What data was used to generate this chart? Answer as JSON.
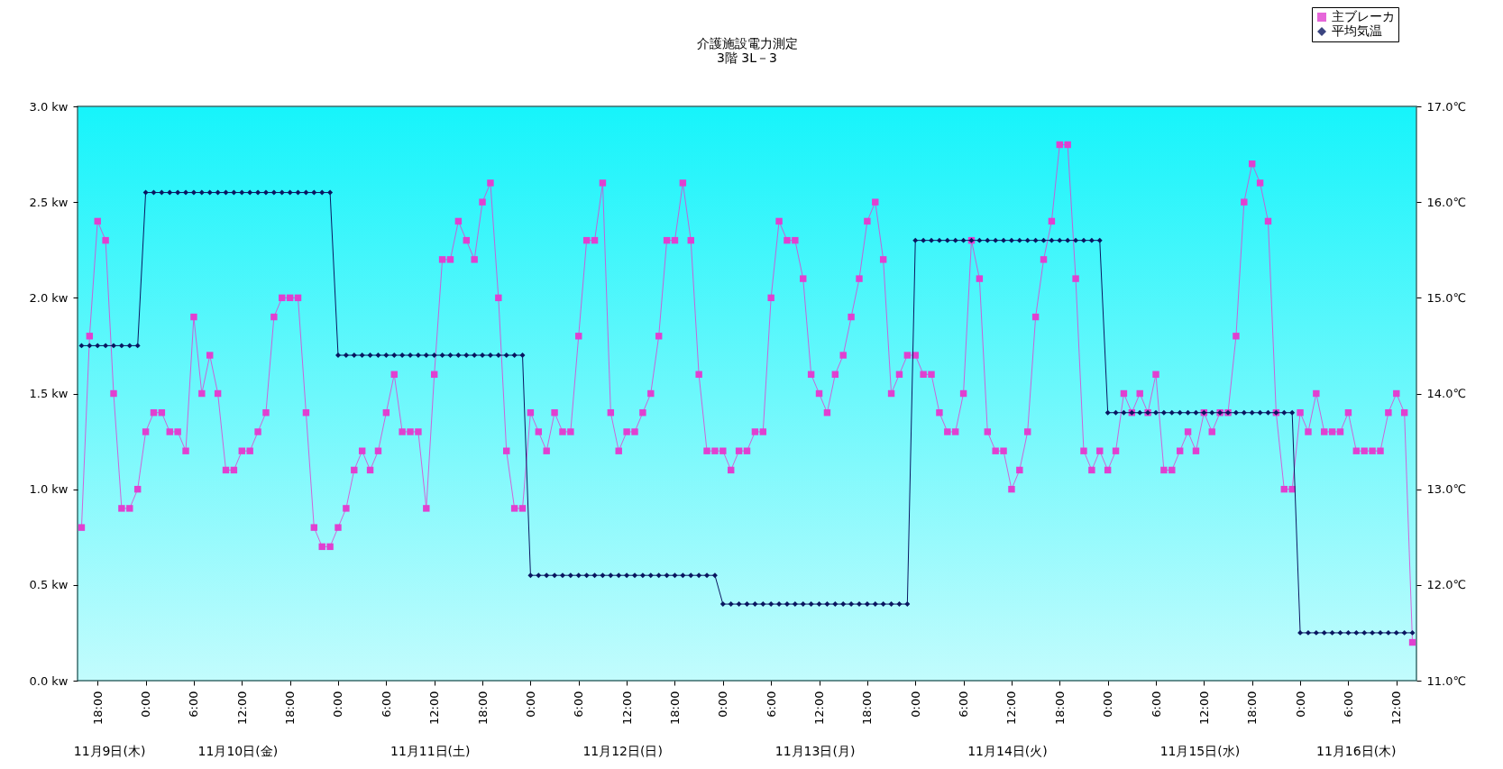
{
  "chart_data": {
    "type": "line",
    "title": "介護施設電力測定",
    "subtitle": "3階 3L－3",
    "legend": "top right",
    "x": [
      "--11-09T16:00",
      "--11-09T17:00",
      "--11-09T18:00",
      "--11-09T19:00",
      "--11-09T20:00",
      "--11-09T21:00",
      "--11-09T22:00",
      "--11-09T23:00",
      "--11-10T00:00",
      "--11-10T01:00",
      "--11-10T02:00",
      "--11-10T03:00",
      "--11-10T04:00",
      "--11-10T05:00",
      "--11-10T06:00",
      "--11-10T07:00",
      "--11-10T08:00",
      "--11-10T09:00",
      "--11-10T10:00",
      "--11-10T11:00",
      "--11-10T12:00",
      "--11-10T13:00",
      "--11-10T14:00",
      "--11-10T15:00",
      "--11-10T16:00",
      "--11-10T17:00",
      "--11-10T18:00",
      "--11-10T19:00",
      "--11-10T20:00",
      "--11-10T21:00",
      "--11-10T22:00",
      "--11-10T23:00",
      "--11-11T00:00",
      "--11-11T01:00",
      "--11-11T02:00",
      "--11-11T03:00",
      "--11-11T04:00",
      "--11-11T05:00",
      "--11-11T06:00",
      "--11-11T07:00",
      "--11-11T08:00",
      "--11-11T09:00",
      "--11-11T10:00",
      "--11-11T11:00",
      "--11-11T12:00",
      "--11-11T13:00",
      "--11-11T14:00",
      "--11-11T15:00",
      "--11-11T16:00",
      "--11-11T17:00",
      "--11-11T18:00",
      "--11-11T19:00",
      "--11-11T20:00",
      "--11-11T21:00",
      "--11-11T22:00",
      "--11-11T23:00",
      "--11-12T00:00",
      "--11-12T01:00",
      "--11-12T02:00",
      "--11-12T03:00",
      "--11-12T04:00",
      "--11-12T05:00",
      "--11-12T06:00",
      "--11-12T07:00",
      "--11-12T08:00",
      "--11-12T09:00",
      "--11-12T10:00",
      "--11-12T11:00",
      "--11-12T12:00",
      "--11-12T13:00",
      "--11-12T14:00",
      "--11-12T15:00",
      "--11-12T16:00",
      "--11-12T17:00",
      "--11-12T18:00",
      "--11-12T19:00",
      "--11-12T20:00",
      "--11-12T21:00",
      "--11-12T22:00",
      "--11-12T23:00",
      "--11-13T00:00",
      "--11-13T01:00",
      "--11-13T02:00",
      "--11-13T03:00",
      "--11-13T04:00",
      "--11-13T05:00",
      "--11-13T06:00",
      "--11-13T07:00",
      "--11-13T08:00",
      "--11-13T09:00",
      "--11-13T10:00",
      "--11-13T11:00",
      "--11-13T12:00",
      "--11-13T13:00",
      "--11-13T14:00",
      "--11-13T15:00",
      "--11-13T16:00",
      "--11-13T17:00",
      "--11-13T18:00",
      "--11-13T19:00",
      "--11-13T20:00",
      "--11-13T21:00",
      "--11-13T22:00",
      "--11-13T23:00",
      "--11-14T00:00",
      "--11-14T01:00",
      "--11-14T02:00",
      "--11-14T03:00",
      "--11-14T04:00",
      "--11-14T05:00",
      "--11-14T06:00",
      "--11-14T07:00",
      "--11-14T08:00",
      "--11-14T09:00",
      "--11-14T10:00",
      "--11-14T11:00",
      "--11-14T12:00",
      "--11-14T13:00",
      "--11-14T14:00",
      "--11-14T15:00",
      "--11-14T16:00",
      "--11-14T17:00",
      "--11-14T18:00",
      "--11-14T19:00",
      "--11-14T20:00",
      "--11-14T21:00",
      "--11-14T22:00",
      "--11-14T23:00",
      "--11-15T00:00",
      "--11-15T01:00",
      "--11-15T02:00",
      "--11-15T03:00",
      "--11-15T04:00",
      "--11-15T05:00",
      "--11-15T06:00",
      "--11-15T07:00",
      "--11-15T08:00",
      "--11-15T09:00",
      "--11-15T10:00",
      "--11-15T11:00",
      "--11-15T12:00",
      "--11-15T13:00",
      "--11-15T14:00",
      "--11-15T15:00",
      "--11-15T16:00",
      "--11-15T17:00",
      "--11-15T18:00",
      "--11-15T19:00",
      "--11-15T20:00",
      "--11-15T21:00",
      "--11-15T22:00",
      "--11-15T23:00",
      "--11-16T00:00",
      "--11-16T01:00",
      "--11-16T02:00",
      "--11-16T03:00",
      "--11-16T04:00",
      "--11-16T05:00",
      "--11-16T06:00",
      "--11-16T07:00",
      "--11-16T08:00",
      "--11-16T09:00",
      "--11-16T10:00",
      "--11-16T11:00",
      "--11-16T12:00",
      "--11-16T13:00",
      "--11-16T14:00"
    ],
    "xlim": [
      "--11-09T15:30",
      "--11-16T14:30"
    ],
    "xticks": [
      {
        "value": "--11-09T18:00",
        "label": "18:00"
      },
      {
        "value": "--11-10T00:00",
        "label": "0:00"
      },
      {
        "value": "--11-10T06:00",
        "label": "6:00"
      },
      {
        "value": "--11-10T12:00",
        "label": "12:00"
      },
      {
        "value": "--11-10T18:00",
        "label": "18:00"
      },
      {
        "value": "--11-11T00:00",
        "label": "0:00"
      },
      {
        "value": "--11-11T06:00",
        "label": "6:00"
      },
      {
        "value": "--11-11T12:00",
        "label": "12:00"
      },
      {
        "value": "--11-11T18:00",
        "label": "18:00"
      },
      {
        "value": "--11-12T00:00",
        "label": "0:00"
      },
      {
        "value": "--11-12T06:00",
        "label": "6:00"
      },
      {
        "value": "--11-12T12:00",
        "label": "12:00"
      },
      {
        "value": "--11-12T18:00",
        "label": "18:00"
      },
      {
        "value": "--11-13T00:00",
        "label": "0:00"
      },
      {
        "value": "--11-13T06:00",
        "label": "6:00"
      },
      {
        "value": "--11-13T12:00",
        "label": "12:00"
      },
      {
        "value": "--11-13T18:00",
        "label": "18:00"
      },
      {
        "value": "--11-14T00:00",
        "label": "0:00"
      },
      {
        "value": "--11-14T06:00",
        "label": "6:00"
      },
      {
        "value": "--11-14T12:00",
        "label": "12:00"
      },
      {
        "value": "--11-14T18:00",
        "label": "18:00"
      },
      {
        "value": "--11-15T00:00",
        "label": "0:00"
      },
      {
        "value": "--11-15T06:00",
        "label": "6:00"
      },
      {
        "value": "--11-15T12:00",
        "label": "12:00"
      },
      {
        "value": "--11-15T18:00",
        "label": "18:00"
      },
      {
        "value": "--11-16T00:00",
        "label": "0:00"
      },
      {
        "value": "--11-16T06:00",
        "label": "6:00"
      },
      {
        "value": "--11-16T12:00",
        "label": "12:00"
      }
    ],
    "ylim": [
      0,
      3
    ],
    "yticks": [
      {
        "value": 0,
        "label": "0.0 kw"
      },
      {
        "value": 0.5,
        "label": "0.5 kw"
      },
      {
        "value": 1,
        "label": "1.0 kw"
      },
      {
        "value": 1.5,
        "label": "1.5 kw"
      },
      {
        "value": 2,
        "label": "2.0 kw"
      },
      {
        "value": 2.5,
        "label": "2.5 kw"
      },
      {
        "value": 3,
        "label": "3.0 kw"
      }
    ],
    "y2lim": [
      11,
      17
    ],
    "y2ticks": [
      {
        "value": 11,
        "label": "11.0℃"
      },
      {
        "value": 12,
        "label": "12.0℃"
      },
      {
        "value": 13,
        "label": "13.0℃"
      },
      {
        "value": 14,
        "label": "14.0℃"
      },
      {
        "value": 15,
        "label": "15.0℃"
      },
      {
        "value": 16,
        "label": "16.0℃"
      },
      {
        "value": 17,
        "label": "17.0℃"
      }
    ],
    "annotations": [
      "11月9日(木)",
      "11月10日(金)",
      "11月11日(土)",
      "11月12日(日)",
      "11月13日(月)",
      "11月14日(火)",
      "11月15日(水)",
      "11月16日(木)"
    ],
    "series": [
      {
        "name": "主ブレーカ",
        "color": "#e040d0",
        "marker": "square",
        "values": [
          0.8,
          1.8,
          2.4,
          2.3,
          1.5,
          0.9,
          0.9,
          1.0,
          1.3,
          1.4,
          1.4,
          1.3,
          1.3,
          1.2,
          1.9,
          1.5,
          1.7,
          1.5,
          1.1,
          1.1,
          1.2,
          1.2,
          1.3,
          1.4,
          1.9,
          2.0,
          2.0,
          2.0,
          1.4,
          0.8,
          0.7,
          0.7,
          0.8,
          0.9,
          1.1,
          1.2,
          1.1,
          1.2,
          1.4,
          1.6,
          1.3,
          1.3,
          1.3,
          0.9,
          1.6,
          2.2,
          2.2,
          2.4,
          2.3,
          2.2,
          2.5,
          2.6,
          2.0,
          1.2,
          0.9,
          0.9,
          1.4,
          1.3,
          1.2,
          1.4,
          1.3,
          1.3,
          1.8,
          2.3,
          2.3,
          2.6,
          1.4,
          1.2,
          1.3,
          1.3,
          1.4,
          1.5,
          1.8,
          2.3,
          2.3,
          2.6,
          2.3,
          1.6,
          1.2,
          1.2,
          1.2,
          1.1,
          1.2,
          1.2,
          1.3,
          1.3,
          2.0,
          2.4,
          2.3,
          2.3,
          2.1,
          1.6,
          1.5,
          1.4,
          1.6,
          1.7,
          1.9,
          2.1,
          2.4,
          2.5,
          2.2,
          1.5,
          1.6,
          1.7,
          1.7,
          1.6,
          1.6,
          1.4,
          1.3,
          1.3,
          1.5,
          2.3,
          2.1,
          1.3,
          1.2,
          1.2,
          1.0,
          1.1,
          1.3,
          1.9,
          2.2,
          2.4,
          2.8,
          2.8,
          2.1,
          1.2,
          1.1,
          1.2,
          1.1,
          1.2,
          1.5,
          1.4,
          1.5,
          1.4,
          1.6,
          1.1,
          1.1,
          1.2,
          1.3,
          1.2,
          1.4,
          1.3,
          1.4,
          1.4,
          1.8,
          2.5,
          2.7,
          2.6,
          2.4,
          1.4,
          1.0,
          1.0,
          1.4,
          1.3,
          1.5,
          1.3,
          1.3,
          1.3,
          1.4,
          1.2,
          1.2,
          1.2,
          1.2,
          1.4,
          1.5,
          1.4,
          0.2
        ]
      },
      {
        "name": "平均気温",
        "color": "#0a1660",
        "marker": "diamond",
        "axis": "y2",
        "values": [
          14.5,
          14.5,
          14.5,
          14.5,
          14.5,
          14.5,
          14.5,
          14.5,
          16.1,
          16.1,
          16.1,
          16.1,
          16.1,
          16.1,
          16.1,
          16.1,
          16.1,
          16.1,
          16.1,
          16.1,
          16.1,
          16.1,
          16.1,
          16.1,
          16.1,
          16.1,
          16.1,
          16.1,
          16.1,
          16.1,
          16.1,
          16.1,
          14.4,
          14.4,
          14.4,
          14.4,
          14.4,
          14.4,
          14.4,
          14.4,
          14.4,
          14.4,
          14.4,
          14.4,
          14.4,
          14.4,
          14.4,
          14.4,
          14.4,
          14.4,
          14.4,
          14.4,
          14.4,
          14.4,
          14.4,
          14.4,
          12.1,
          12.1,
          12.1,
          12.1,
          12.1,
          12.1,
          12.1,
          12.1,
          12.1,
          12.1,
          12.1,
          12.1,
          12.1,
          12.1,
          12.1,
          12.1,
          12.1,
          12.1,
          12.1,
          12.1,
          12.1,
          12.1,
          12.1,
          12.1,
          11.8,
          11.8,
          11.8,
          11.8,
          11.8,
          11.8,
          11.8,
          11.8,
          11.8,
          11.8,
          11.8,
          11.8,
          11.8,
          11.8,
          11.8,
          11.8,
          11.8,
          11.8,
          11.8,
          11.8,
          11.8,
          11.8,
          11.8,
          11.8,
          15.6,
          15.6,
          15.6,
          15.6,
          15.6,
          15.6,
          15.6,
          15.6,
          15.6,
          15.6,
          15.6,
          15.6,
          15.6,
          15.6,
          15.6,
          15.6,
          15.6,
          15.6,
          15.6,
          15.6,
          15.6,
          15.6,
          15.6,
          15.6,
          13.8,
          13.8,
          13.8,
          13.8,
          13.8,
          13.8,
          13.8,
          13.8,
          13.8,
          13.8,
          13.8,
          13.8,
          13.8,
          13.8,
          13.8,
          13.8,
          13.8,
          13.8,
          13.8,
          13.8,
          13.8,
          13.8,
          13.8,
          13.8,
          11.5,
          11.5,
          11.5,
          11.5,
          11.5,
          11.5,
          11.5,
          11.5,
          11.5,
          11.5,
          11.5,
          11.5,
          11.5,
          11.5,
          11.5
        ]
      }
    ]
  }
}
